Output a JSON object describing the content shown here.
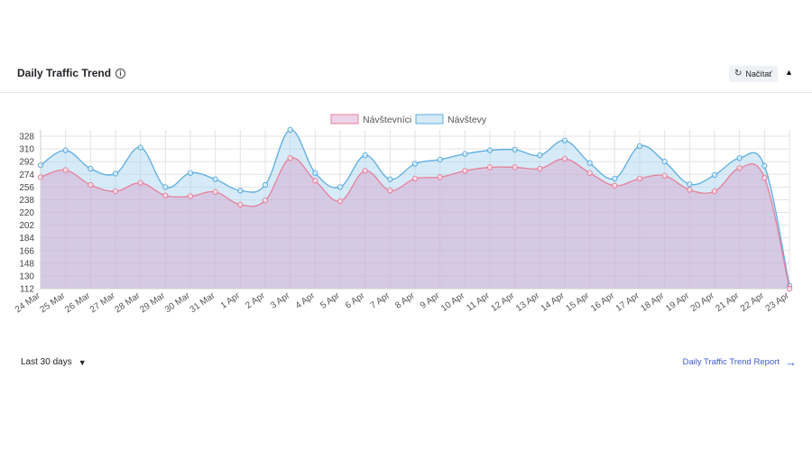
{
  "header": {
    "title": "Daily Traffic Trend",
    "info_icon": "info-icon",
    "reload_label": "Načítať",
    "reload_icon": "refresh-icon",
    "collapse_icon": "caret-up-icon"
  },
  "footer": {
    "range_label": "Last 30 days",
    "report_link": "Daily Traffic Trend Report"
  },
  "chart_data": {
    "type": "area",
    "categories": [
      "24 Mar",
      "25 Mar",
      "26 Mar",
      "27 Mar",
      "28 Mar",
      "29 Mar",
      "30 Mar",
      "31 Mar",
      "1 Apr",
      "2 Apr",
      "3 Apr",
      "4 Apr",
      "5 Apr",
      "6 Apr",
      "7 Apr",
      "8 Apr",
      "9 Apr",
      "10 Apr",
      "11 Apr",
      "12 Apr",
      "13 Apr",
      "14 Apr",
      "15 Apr",
      "16 Apr",
      "17 Apr",
      "18 Apr",
      "19 Apr",
      "20 Apr",
      "21 Apr",
      "22 Apr",
      "23 Apr"
    ],
    "series": [
      {
        "name": "Návštevníci",
        "color": "#e8809a",
        "fill": "rgba(215,160,205,0.45)",
        "values": [
          270,
          280,
          259,
          250,
          262,
          244,
          243,
          249,
          231,
          237,
          297,
          265,
          236,
          279,
          251,
          268,
          270,
          279,
          284,
          284,
          282,
          296,
          276,
          258,
          268,
          272,
          252,
          250,
          283,
          269,
          112
        ]
      },
      {
        "name": "Návštevy",
        "color": "#5dade2",
        "fill": "rgba(173,216,240,0.5)",
        "values": [
          287,
          308,
          282,
          275,
          312,
          256,
          276,
          267,
          251,
          259,
          337,
          276,
          256,
          301,
          267,
          289,
          295,
          303,
          308,
          309,
          301,
          322,
          290,
          268,
          314,
          292,
          260,
          273,
          297,
          286,
          116
        ]
      }
    ],
    "y_ticks": [
      112,
      130,
      148,
      166,
      184,
      202,
      220,
      238,
      256,
      274,
      292,
      310,
      328
    ],
    "ylim": [
      112,
      337
    ],
    "grid": true,
    "legend": "top-center"
  }
}
